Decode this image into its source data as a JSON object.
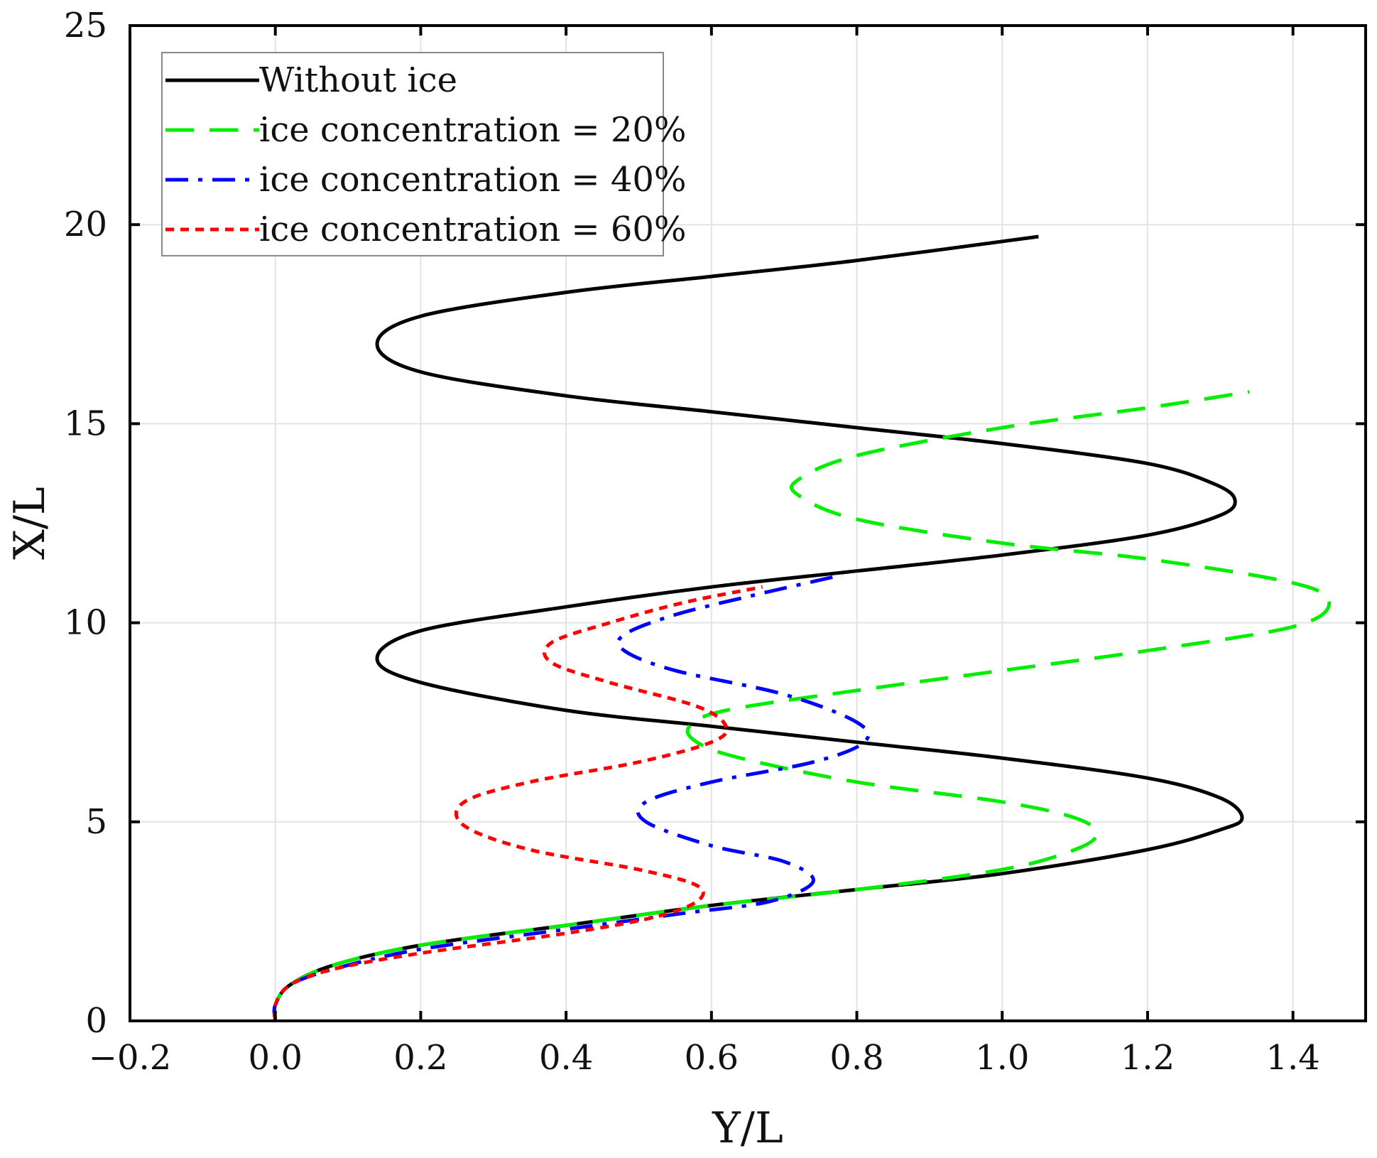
{
  "chart_data": {
    "type": "line",
    "title": "",
    "xlabel": "Y/L",
    "ylabel": "X/L",
    "xlim": [
      -0.2,
      1.5
    ],
    "ylim": [
      0,
      25
    ],
    "x_ticks": [
      -0.2,
      0.0,
      0.2,
      0.4,
      0.6,
      0.8,
      1.0,
      1.2,
      1.4
    ],
    "x_tick_labels": [
      "−0.2",
      "0.0",
      "0.2",
      "0.4",
      "0.6",
      "0.8",
      "1.0",
      "1.2",
      "1.4"
    ],
    "y_ticks": [
      0,
      5,
      10,
      15,
      20,
      25
    ],
    "y_tick_labels": [
      "0",
      "5",
      "10",
      "15",
      "20",
      "25"
    ],
    "grid": true,
    "legend_position": "top-left",
    "series": [
      {
        "name": "Without ice",
        "color": "#000000",
        "style": "solid",
        "points": [
          [
            0.0,
            0.0
          ],
          [
            0.0,
            0.4
          ],
          [
            0.02,
            0.9
          ],
          [
            0.08,
            1.4
          ],
          [
            0.2,
            1.9
          ],
          [
            0.4,
            2.4
          ],
          [
            0.6,
            2.9
          ],
          [
            0.8,
            3.3
          ],
          [
            1.0,
            3.7
          ],
          [
            1.2,
            4.3
          ],
          [
            1.3,
            4.8
          ],
          [
            1.33,
            5.1
          ],
          [
            1.3,
            5.6
          ],
          [
            1.2,
            6.1
          ],
          [
            1.0,
            6.6
          ],
          [
            0.8,
            7.0
          ],
          [
            0.6,
            7.4
          ],
          [
            0.4,
            7.8
          ],
          [
            0.2,
            8.5
          ],
          [
            0.14,
            9.1
          ],
          [
            0.2,
            9.8
          ],
          [
            0.4,
            10.4
          ],
          [
            0.6,
            10.9
          ],
          [
            0.8,
            11.3
          ],
          [
            1.0,
            11.7
          ],
          [
            1.2,
            12.2
          ],
          [
            1.3,
            12.7
          ],
          [
            1.32,
            13.1
          ],
          [
            1.29,
            13.5
          ],
          [
            1.2,
            14.0
          ],
          [
            1.0,
            14.5
          ],
          [
            0.8,
            14.9
          ],
          [
            0.6,
            15.3
          ],
          [
            0.4,
            15.7
          ],
          [
            0.2,
            16.3
          ],
          [
            0.14,
            17.0
          ],
          [
            0.2,
            17.7
          ],
          [
            0.4,
            18.3
          ],
          [
            0.6,
            18.7
          ],
          [
            0.8,
            19.1
          ],
          [
            1.05,
            19.7
          ]
        ]
      },
      {
        "name": "ice concentration = 20%",
        "color": "#00ee00",
        "style": "dashed",
        "points": [
          [
            0.0,
            0.0
          ],
          [
            0.0,
            0.4
          ],
          [
            0.02,
            0.9
          ],
          [
            0.08,
            1.4
          ],
          [
            0.2,
            1.9
          ],
          [
            0.4,
            2.4
          ],
          [
            0.6,
            2.9
          ],
          [
            0.8,
            3.3
          ],
          [
            1.0,
            3.8
          ],
          [
            1.1,
            4.3
          ],
          [
            1.13,
            4.7
          ],
          [
            1.1,
            5.1
          ],
          [
            1.0,
            5.5
          ],
          [
            0.8,
            6.0
          ],
          [
            0.64,
            6.6
          ],
          [
            0.58,
            7.0
          ],
          [
            0.57,
            7.4
          ],
          [
            0.62,
            7.8
          ],
          [
            0.8,
            8.3
          ],
          [
            1.0,
            8.8
          ],
          [
            1.2,
            9.3
          ],
          [
            1.4,
            9.9
          ],
          [
            1.45,
            10.5
          ],
          [
            1.4,
            11.0
          ],
          [
            1.2,
            11.6
          ],
          [
            1.0,
            12.0
          ],
          [
            0.8,
            12.6
          ],
          [
            0.72,
            13.2
          ],
          [
            0.72,
            13.6
          ],
          [
            0.8,
            14.2
          ],
          [
            1.0,
            14.9
          ],
          [
            1.2,
            15.4
          ],
          [
            1.34,
            15.8
          ]
        ]
      },
      {
        "name": "ice concentration = 40%",
        "color": "#0000ff",
        "style": "dashdot",
        "points": [
          [
            0.0,
            0.0
          ],
          [
            0.0,
            0.4
          ],
          [
            0.02,
            0.9
          ],
          [
            0.08,
            1.3
          ],
          [
            0.2,
            1.8
          ],
          [
            0.4,
            2.3
          ],
          [
            0.56,
            2.7
          ],
          [
            0.68,
            3.0
          ],
          [
            0.74,
            3.5
          ],
          [
            0.7,
            4.0
          ],
          [
            0.6,
            4.4
          ],
          [
            0.51,
            5.0
          ],
          [
            0.51,
            5.5
          ],
          [
            0.6,
            6.0
          ],
          [
            0.74,
            6.5
          ],
          [
            0.81,
            7.0
          ],
          [
            0.8,
            7.5
          ],
          [
            0.7,
            8.2
          ],
          [
            0.55,
            8.8
          ],
          [
            0.48,
            9.3
          ],
          [
            0.48,
            9.7
          ],
          [
            0.55,
            10.2
          ],
          [
            0.66,
            10.7
          ],
          [
            0.78,
            11.2
          ]
        ]
      },
      {
        "name": "ice concentration = 60%",
        "color": "#ff0000",
        "style": "dotted",
        "points": [
          [
            0.0,
            0.0
          ],
          [
            0.0,
            0.4
          ],
          [
            0.02,
            0.9
          ],
          [
            0.08,
            1.3
          ],
          [
            0.2,
            1.7
          ],
          [
            0.4,
            2.2
          ],
          [
            0.52,
            2.6
          ],
          [
            0.58,
            3.0
          ],
          [
            0.58,
            3.4
          ],
          [
            0.5,
            3.8
          ],
          [
            0.35,
            4.3
          ],
          [
            0.26,
            4.9
          ],
          [
            0.26,
            5.5
          ],
          [
            0.35,
            6.0
          ],
          [
            0.5,
            6.5
          ],
          [
            0.6,
            7.0
          ],
          [
            0.62,
            7.4
          ],
          [
            0.58,
            7.9
          ],
          [
            0.46,
            8.5
          ],
          [
            0.38,
            9.0
          ],
          [
            0.38,
            9.5
          ],
          [
            0.46,
            10.0
          ],
          [
            0.56,
            10.5
          ],
          [
            0.67,
            10.9
          ]
        ]
      }
    ]
  }
}
